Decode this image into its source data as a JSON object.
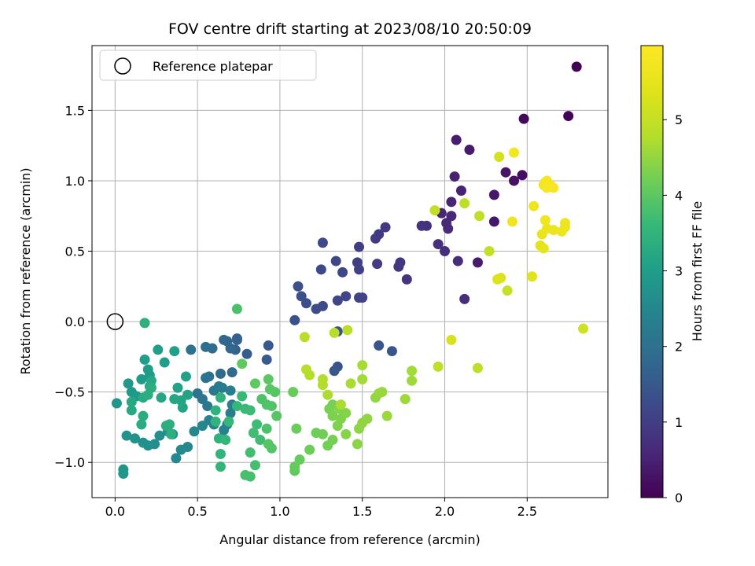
{
  "chart_data": {
    "type": "scatter",
    "title": "FOV centre drift starting at 2023/08/10 20:50:09",
    "xlabel": "Angular distance from reference (arcmin)",
    "ylabel": "Rotation from reference (arcmin)",
    "xlim": [
      -0.14,
      2.99
    ],
    "ylim": [
      -1.25,
      1.96
    ],
    "xticks": [
      {
        "value": 0.0,
        "label": "0.0"
      },
      {
        "value": 0.5,
        "label": "0.5"
      },
      {
        "value": 1.0,
        "label": "1.0"
      },
      {
        "value": 1.5,
        "label": "1.5"
      },
      {
        "value": 2.0,
        "label": "2.0"
      },
      {
        "value": 2.5,
        "label": "2.5"
      }
    ],
    "yticks": [
      {
        "value": -1.0,
        "label": "−1.0"
      },
      {
        "value": -0.5,
        "label": "−0.5"
      },
      {
        "value": 0.0,
        "label": "0.0"
      },
      {
        "value": 0.5,
        "label": "0.5"
      },
      {
        "value": 1.0,
        "label": "1.0"
      },
      {
        "value": 1.5,
        "label": "1.5"
      }
    ],
    "grid": true,
    "legend": {
      "placement": "top-left",
      "entries": [
        "Reference platepar"
      ]
    },
    "reference_point": {
      "x": 0.0,
      "y": 0.0
    },
    "colorbar": {
      "label": "Hours from first FF file",
      "colormap": "viridis",
      "range": [
        0,
        5.98
      ],
      "ticks": [
        {
          "value": 0,
          "label": "0"
        },
        {
          "value": 1,
          "label": "1"
        },
        {
          "value": 2,
          "label": "2"
        },
        {
          "value": 3,
          "label": "3"
        },
        {
          "value": 4,
          "label": "4"
        },
        {
          "value": 5,
          "label": "5"
        }
      ]
    },
    "points": [
      [
        2.8,
        1.81,
        0.02
      ],
      [
        2.75,
        1.46,
        0.05
      ],
      [
        2.48,
        1.44,
        0.12
      ],
      [
        2.47,
        1.04,
        0.2
      ],
      [
        2.42,
        1.0,
        0.25
      ],
      [
        2.37,
        1.06,
        0.3
      ],
      [
        2.3,
        0.9,
        0.32
      ],
      [
        2.3,
        0.71,
        0.35
      ],
      [
        2.2,
        0.42,
        0.38
      ],
      [
        2.15,
        1.22,
        0.4
      ],
      [
        2.07,
        1.29,
        0.45
      ],
      [
        2.06,
        1.03,
        0.5
      ],
      [
        2.1,
        0.93,
        0.52
      ],
      [
        2.04,
        0.85,
        0.55
      ],
      [
        1.98,
        0.77,
        0.58
      ],
      [
        2.04,
        0.75,
        0.6
      ],
      [
        2.01,
        0.7,
        0.63
      ],
      [
        2.02,
        0.66,
        0.65
      ],
      [
        2.12,
        0.16,
        0.7
      ],
      [
        2.08,
        0.43,
        0.68
      ],
      [
        2.0,
        0.5,
        0.72
      ],
      [
        1.96,
        0.55,
        0.74
      ],
      [
        1.89,
        0.68,
        0.77
      ],
      [
        1.86,
        0.68,
        0.8
      ],
      [
        1.77,
        0.3,
        0.82
      ],
      [
        1.73,
        0.42,
        0.85
      ],
      [
        1.72,
        0.39,
        0.87
      ],
      [
        1.64,
        0.67,
        0.9
      ],
      [
        1.6,
        0.62,
        0.93
      ],
      [
        1.58,
        0.59,
        0.95
      ],
      [
        1.59,
        0.41,
        0.97
      ],
      [
        1.48,
        0.53,
        1.0
      ],
      [
        1.47,
        0.42,
        1.02
      ],
      [
        1.48,
        0.37,
        1.04
      ],
      [
        1.48,
        0.17,
        1.07
      ],
      [
        1.5,
        0.17,
        1.09
      ],
      [
        1.4,
        0.18,
        1.12
      ],
      [
        1.35,
        0.15,
        1.14
      ],
      [
        1.34,
        0.43,
        1.16
      ],
      [
        1.38,
        0.35,
        1.18
      ],
      [
        1.26,
        0.56,
        1.2
      ],
      [
        1.25,
        0.37,
        1.22
      ],
      [
        1.26,
        0.11,
        1.25
      ],
      [
        1.22,
        0.09,
        1.27
      ],
      [
        1.16,
        0.13,
        1.29
      ],
      [
        1.11,
        0.25,
        1.31
      ],
      [
        1.13,
        0.18,
        1.33
      ],
      [
        1.09,
        0.01,
        1.36
      ],
      [
        1.35,
        -0.07,
        1.38
      ],
      [
        1.35,
        -0.32,
        1.4
      ],
      [
        1.6,
        -0.17,
        1.43
      ],
      [
        1.68,
        -0.21,
        1.45
      ],
      [
        1.33,
        -0.35,
        1.48
      ],
      [
        0.93,
        -0.17,
        1.5
      ],
      [
        0.92,
        -0.27,
        1.55
      ],
      [
        0.8,
        -0.23,
        1.6
      ],
      [
        0.74,
        -0.13,
        1.63
      ],
      [
        0.74,
        -0.12,
        1.66
      ],
      [
        0.73,
        -0.2,
        1.7
      ],
      [
        0.68,
        -0.14,
        1.73
      ],
      [
        0.66,
        -0.13,
        1.77
      ],
      [
        0.7,
        -0.19,
        1.8
      ],
      [
        0.71,
        -0.36,
        1.83
      ],
      [
        0.64,
        -0.37,
        1.86
      ],
      [
        0.59,
        -0.19,
        1.9
      ],
      [
        0.55,
        -0.18,
        1.94
      ],
      [
        0.46,
        -0.2,
        1.97
      ],
      [
        0.57,
        -0.39,
        2.0
      ],
      [
        0.55,
        -0.4,
        2.03
      ],
      [
        0.5,
        -0.51,
        2.06
      ],
      [
        0.53,
        -0.55,
        2.1
      ],
      [
        0.56,
        -0.6,
        2.13
      ],
      [
        0.6,
        -0.49,
        2.16
      ],
      [
        0.63,
        -0.46,
        2.2
      ],
      [
        0.65,
        -0.47,
        2.23
      ],
      [
        0.7,
        -0.49,
        2.27
      ],
      [
        0.71,
        -0.59,
        2.3
      ],
      [
        0.7,
        -0.65,
        2.33
      ],
      [
        0.68,
        -0.73,
        2.36
      ],
      [
        0.66,
        -0.77,
        2.4
      ],
      [
        0.6,
        -0.73,
        2.42
      ],
      [
        0.57,
        -0.7,
        2.45
      ],
      [
        0.53,
        -0.74,
        2.48
      ],
      [
        0.48,
        -0.78,
        2.5
      ],
      [
        0.44,
        -0.89,
        2.52
      ],
      [
        0.4,
        -0.91,
        2.55
      ],
      [
        0.37,
        -0.97,
        2.57
      ],
      [
        0.35,
        -0.8,
        2.6
      ],
      [
        0.32,
        -0.78,
        2.62
      ],
      [
        0.27,
        -0.81,
        2.65
      ],
      [
        0.24,
        -0.87,
        2.67
      ],
      [
        0.2,
        -0.88,
        2.7
      ],
      [
        0.17,
        -0.86,
        2.72
      ],
      [
        0.12,
        -0.83,
        2.74
      ],
      [
        0.07,
        -0.81,
        2.77
      ],
      [
        0.05,
        -1.05,
        2.8
      ],
      [
        0.05,
        -1.08,
        2.82
      ],
      [
        0.01,
        -0.58,
        2.84
      ],
      [
        0.08,
        -0.44,
        2.86
      ],
      [
        0.1,
        -0.5,
        2.88
      ],
      [
        0.13,
        -0.53,
        2.9
      ],
      [
        0.16,
        -0.41,
        2.92
      ],
      [
        0.2,
        -0.34,
        2.94
      ],
      [
        0.21,
        -0.38,
        2.96
      ],
      [
        0.18,
        -0.27,
        2.98
      ],
      [
        0.26,
        -0.2,
        3.0
      ],
      [
        0.3,
        -0.29,
        3.02
      ],
      [
        0.36,
        -0.21,
        3.04
      ],
      [
        0.43,
        -0.39,
        3.06
      ],
      [
        0.38,
        -0.47,
        3.08
      ],
      [
        0.44,
        -0.52,
        3.1
      ],
      [
        0.4,
        -0.56,
        3.12
      ],
      [
        0.41,
        -0.61,
        3.14
      ],
      [
        0.36,
        -0.55,
        3.16
      ],
      [
        0.28,
        -0.54,
        3.18
      ],
      [
        0.22,
        -0.42,
        3.2
      ],
      [
        0.21,
        -0.46,
        3.22
      ],
      [
        0.1,
        -0.57,
        3.24
      ],
      [
        0.1,
        -0.63,
        3.26
      ],
      [
        0.17,
        -0.54,
        3.28
      ],
      [
        0.16,
        -0.73,
        3.3
      ],
      [
        0.17,
        -0.67,
        3.32
      ],
      [
        0.2,
        -0.52,
        3.33
      ],
      [
        0.22,
        -0.47,
        3.34
      ],
      [
        0.31,
        -0.74,
        3.36
      ],
      [
        0.33,
        -0.73,
        3.38
      ],
      [
        0.34,
        -0.8,
        3.4
      ],
      [
        0.18,
        -0.01,
        3.42
      ],
      [
        0.61,
        -0.63,
        3.44
      ],
      [
        0.64,
        -0.54,
        3.46
      ],
      [
        0.63,
        -0.83,
        3.48
      ],
      [
        0.61,
        -0.71,
        3.5
      ],
      [
        0.64,
        -0.94,
        3.52
      ],
      [
        0.64,
        -1.03,
        3.54
      ],
      [
        0.67,
        -0.84,
        3.56
      ],
      [
        0.69,
        -0.71,
        3.58
      ],
      [
        0.74,
        -0.6,
        3.6
      ],
      [
        0.77,
        -0.53,
        3.62
      ],
      [
        0.79,
        -0.62,
        3.64
      ],
      [
        0.82,
        -0.63,
        3.66
      ],
      [
        0.86,
        -0.73,
        3.68
      ],
      [
        0.88,
        -0.84,
        3.7
      ],
      [
        0.84,
        -0.79,
        3.72
      ],
      [
        0.82,
        -0.93,
        3.74
      ],
      [
        0.85,
        -1.02,
        3.76
      ],
      [
        0.82,
        -1.1,
        3.78
      ],
      [
        0.79,
        -1.09,
        3.8
      ],
      [
        0.74,
        0.09,
        3.82
      ],
      [
        0.92,
        -0.76,
        3.84
      ],
      [
        0.89,
        -0.55,
        3.86
      ],
      [
        0.92,
        -0.59,
        3.88
      ],
      [
        0.95,
        -0.6,
        3.9
      ],
      [
        0.95,
        -0.9,
        3.92
      ],
      [
        0.93,
        -0.87,
        3.94
      ],
      [
        0.98,
        -0.67,
        3.95
      ],
      [
        0.97,
        -0.5,
        3.96
      ],
      [
        0.94,
        -0.48,
        3.98
      ],
      [
        0.93,
        -0.41,
        4.0
      ],
      [
        0.85,
        -0.44,
        4.02
      ],
      [
        0.77,
        -0.3,
        4.04
      ],
      [
        1.09,
        -1.06,
        4.06
      ],
      [
        1.09,
        -1.03,
        4.08
      ],
      [
        1.12,
        -0.98,
        4.1
      ],
      [
        1.08,
        -0.5,
        4.12
      ],
      [
        1.1,
        -0.76,
        4.14
      ],
      [
        1.18,
        -0.91,
        4.16
      ],
      [
        1.22,
        -0.79,
        4.18
      ],
      [
        1.26,
        -0.8,
        4.2
      ],
      [
        1.29,
        -0.88,
        4.22
      ],
      [
        1.32,
        -0.84,
        4.24
      ],
      [
        1.3,
        -0.62,
        4.26
      ],
      [
        1.32,
        -0.59,
        4.28
      ],
      [
        1.32,
        -0.67,
        4.3
      ],
      [
        1.35,
        -0.74,
        4.32
      ],
      [
        1.37,
        -0.69,
        4.34
      ],
      [
        1.36,
        -0.62,
        4.36
      ],
      [
        1.4,
        -0.65,
        4.38
      ],
      [
        1.4,
        -0.8,
        4.4
      ],
      [
        1.47,
        -0.87,
        4.42
      ],
      [
        1.48,
        -0.76,
        4.44
      ],
      [
        1.5,
        -0.72,
        4.46
      ],
      [
        1.53,
        -0.69,
        4.48
      ],
      [
        1.58,
        -0.54,
        4.5
      ],
      [
        1.6,
        -0.51,
        4.52
      ],
      [
        1.62,
        -0.5,
        4.54
      ],
      [
        1.65,
        -0.67,
        4.56
      ],
      [
        1.76,
        -0.55,
        4.58
      ],
      [
        1.8,
        -0.42,
        4.6
      ],
      [
        1.8,
        -0.35,
        4.62
      ],
      [
        1.5,
        -0.41,
        4.64
      ],
      [
        1.5,
        -0.31,
        4.66
      ],
      [
        1.43,
        -0.44,
        4.68
      ],
      [
        1.37,
        -0.59,
        4.7
      ],
      [
        1.29,
        -0.52,
        4.72
      ],
      [
        1.26,
        -0.45,
        4.74
      ],
      [
        1.26,
        -0.41,
        4.76
      ],
      [
        1.18,
        -0.38,
        4.78
      ],
      [
        1.16,
        -0.34,
        4.8
      ],
      [
        1.15,
        -0.11,
        4.82
      ],
      [
        1.33,
        -0.08,
        4.84
      ],
      [
        1.41,
        -0.06,
        4.86
      ],
      [
        1.96,
        -0.32,
        4.88
      ],
      [
        2.2,
        -0.33,
        4.9
      ],
      [
        2.12,
        0.84,
        4.92
      ],
      [
        2.21,
        0.75,
        4.94
      ],
      [
        1.94,
        0.79,
        4.96
      ],
      [
        2.27,
        0.5,
        4.98
      ],
      [
        2.38,
        0.22,
        5.0
      ],
      [
        2.84,
        -0.05,
        5.1
      ],
      [
        2.33,
        1.17,
        5.2
      ],
      [
        2.04,
        -0.13,
        5.25
      ],
      [
        2.34,
        0.31,
        5.3
      ],
      [
        2.32,
        0.3,
        5.35
      ],
      [
        2.53,
        0.32,
        5.4
      ],
      [
        2.58,
        0.54,
        5.45
      ],
      [
        2.6,
        0.52,
        5.5
      ],
      [
        2.59,
        0.62,
        5.55
      ],
      [
        2.62,
        0.66,
        5.6
      ],
      [
        2.66,
        0.65,
        5.62
      ],
      [
        2.71,
        0.64,
        5.64
      ],
      [
        2.73,
        0.67,
        5.66
      ],
      [
        2.73,
        0.7,
        5.68
      ],
      [
        2.61,
        0.72,
        5.7
      ],
      [
        2.54,
        0.82,
        5.72
      ],
      [
        2.41,
        0.71,
        5.74
      ],
      [
        2.42,
        1.2,
        5.76
      ],
      [
        2.6,
        0.97,
        5.78
      ],
      [
        2.62,
        1.0,
        5.8
      ],
      [
        2.64,
        0.97,
        5.82
      ],
      [
        2.61,
        0.99,
        5.84
      ],
      [
        2.62,
        0.95,
        5.86
      ],
      [
        2.66,
        0.95,
        5.88
      ]
    ]
  }
}
